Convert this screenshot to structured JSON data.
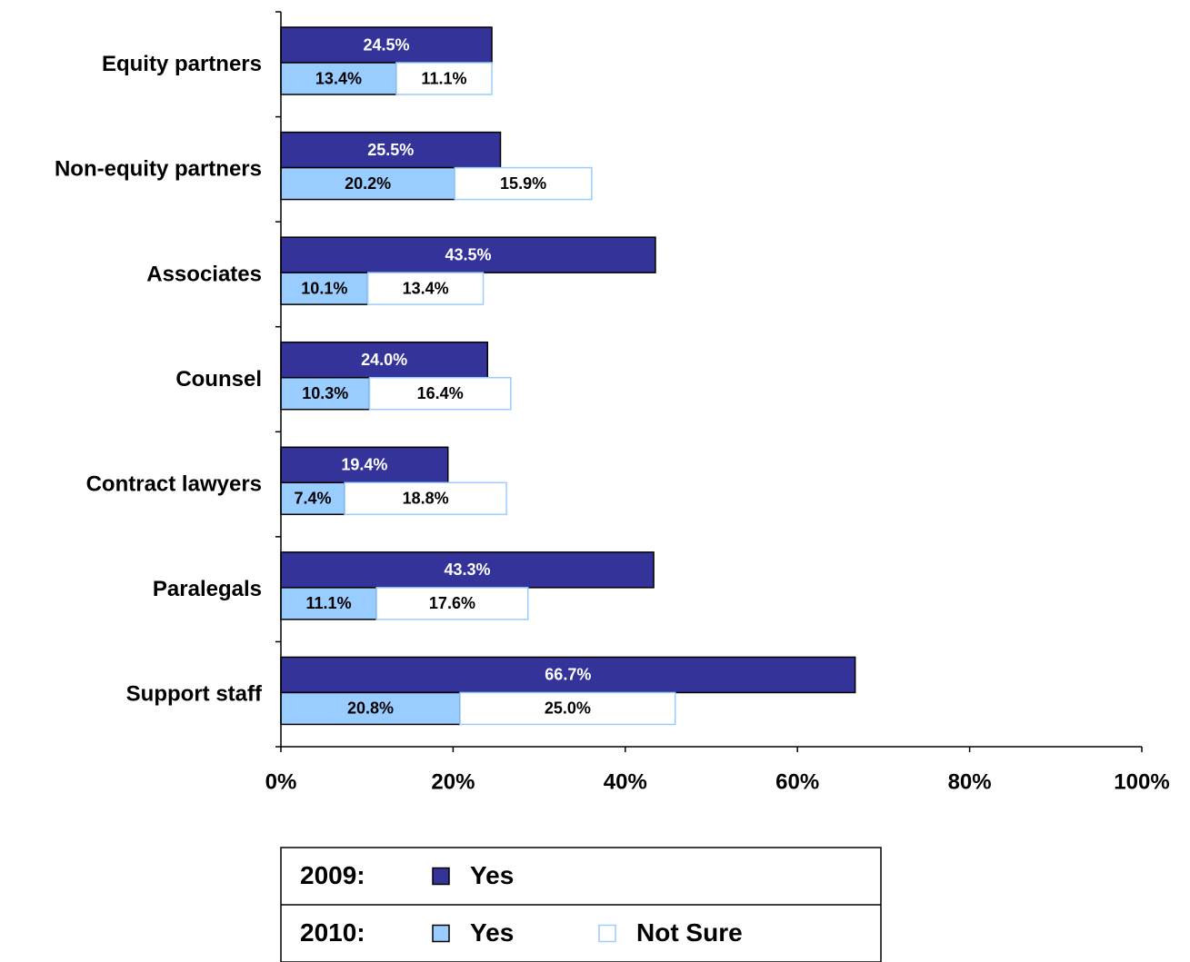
{
  "chart_data": {
    "type": "grouped-stacked-hbar",
    "categories": [
      "Equity partners",
      "Non-equity partners",
      "Associates",
      "Counsel",
      "Contract lawyers",
      "Paralegals",
      "Support staff"
    ],
    "groups": [
      {
        "label": "2009:",
        "series": [
          {
            "name": "Yes",
            "color": "#333399",
            "border": "#000000",
            "label_color": "#ffffff",
            "values": [
              24.5,
              25.5,
              43.5,
              24.0,
              19.4,
              43.3,
              66.7
            ],
            "value_labels": [
              "24.5%",
              "25.5%",
              "43.5%",
              "24.0%",
              "19.4%",
              "43.3%",
              "66.7%"
            ]
          }
        ]
      },
      {
        "label": "2010:",
        "series": [
          {
            "name": "Yes",
            "color": "#99ccff",
            "border": "#000000",
            "label_color": "#000000",
            "values": [
              13.4,
              20.2,
              10.1,
              10.3,
              7.4,
              11.1,
              20.8
            ],
            "value_labels": [
              "13.4%",
              "20.2%",
              "10.1%",
              "10.3%",
              "7.4%",
              "11.1%",
              "20.8%"
            ]
          },
          {
            "name": "Not Sure",
            "color": "#ffffff",
            "border": "#99ccff",
            "label_color": "#000000",
            "values": [
              11.1,
              15.9,
              13.4,
              16.4,
              18.8,
              17.6,
              25.0
            ],
            "value_labels": [
              "11.1%",
              "15.9%",
              "13.4%",
              "16.4%",
              "18.8%",
              "17.6%",
              "25.0%"
            ]
          }
        ]
      }
    ],
    "xlim": [
      0,
      100
    ],
    "xticks": [
      {
        "value": 0,
        "label": "0%"
      },
      {
        "value": 20,
        "label": "20%"
      },
      {
        "value": 40,
        "label": "40%"
      },
      {
        "value": 60,
        "label": "60%"
      },
      {
        "value": 80,
        "label": "80%"
      },
      {
        "value": 100,
        "label": "100%"
      }
    ]
  }
}
